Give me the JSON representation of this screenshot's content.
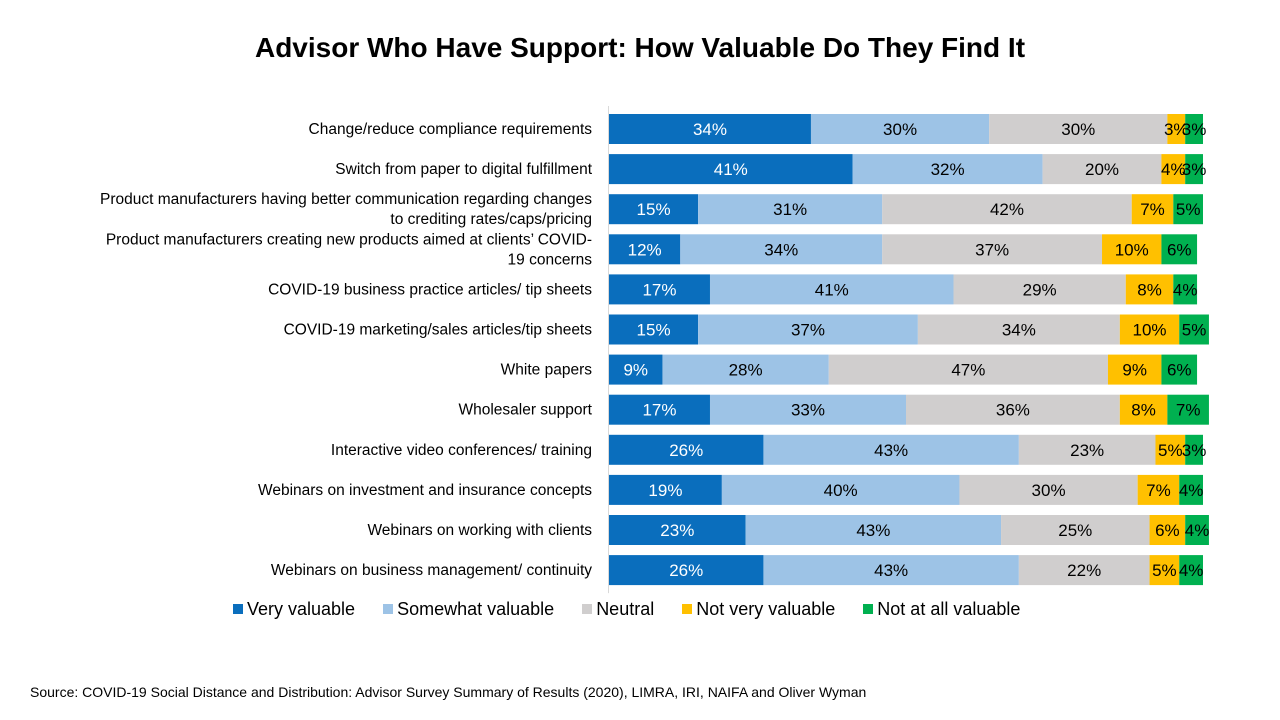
{
  "chart_data": {
    "type": "bar",
    "orientation": "horizontal",
    "stacked": "percent",
    "title": "Advisor Who Have Support: How Valuable Do They Find It",
    "categories": [
      [
        "Change/reduce compliance requirements"
      ],
      [
        "Switch from paper to digital fulfillment"
      ],
      [
        "Product manufacturers having better communication regarding changes",
        "to crediting rates/caps/pricing"
      ],
      [
        "Product manufacturers  creating new products aimed at clients’ COVID-",
        "19 concerns"
      ],
      [
        "COVID-19 business practice articles/ tip sheets"
      ],
      [
        "COVID-19 marketing/sales articles/tip sheets"
      ],
      [
        "White papers"
      ],
      [
        "Wholesaler support"
      ],
      [
        "Interactive video conferences/ training"
      ],
      [
        "Webinars on investment and insurance concepts"
      ],
      [
        "Webinars on working with clients"
      ],
      [
        "Webinars on business management/ continuity"
      ]
    ],
    "series": [
      {
        "name": "Very valuable",
        "color": "#0a6ebd",
        "label_color": "#ffffff",
        "values": [
          34,
          41,
          15,
          12,
          17,
          15,
          9,
          17,
          26,
          19,
          23,
          26
        ]
      },
      {
        "name": "Somewhat valuable",
        "color": "#9dc3e6",
        "label_color": "#000000",
        "values": [
          30,
          32,
          31,
          34,
          41,
          37,
          28,
          33,
          43,
          40,
          43,
          43
        ]
      },
      {
        "name": "Neutral",
        "color": "#d0cece",
        "label_color": "#000000",
        "values": [
          30,
          20,
          42,
          37,
          29,
          34,
          47,
          36,
          23,
          30,
          25,
          22
        ]
      },
      {
        "name": "Not very valuable",
        "color": "#ffc000",
        "label_color": "#000000",
        "values": [
          3,
          4,
          7,
          10,
          8,
          10,
          9,
          8,
          5,
          7,
          6,
          5
        ]
      },
      {
        "name": "Not at all valuable",
        "color": "#00b050",
        "label_color": "#000000",
        "values": [
          3,
          3,
          5,
          6,
          4,
          5,
          6,
          7,
          3,
          4,
          4,
          4
        ]
      }
    ],
    "value_suffix": "%",
    "legend_position": "bottom",
    "grid": false
  },
  "source": "Source: COVID-19 Social Distance and Distribution: Advisor Survey Summary of Results (2020), LIMRA, IRI,  NAIFA and Oliver Wyman"
}
